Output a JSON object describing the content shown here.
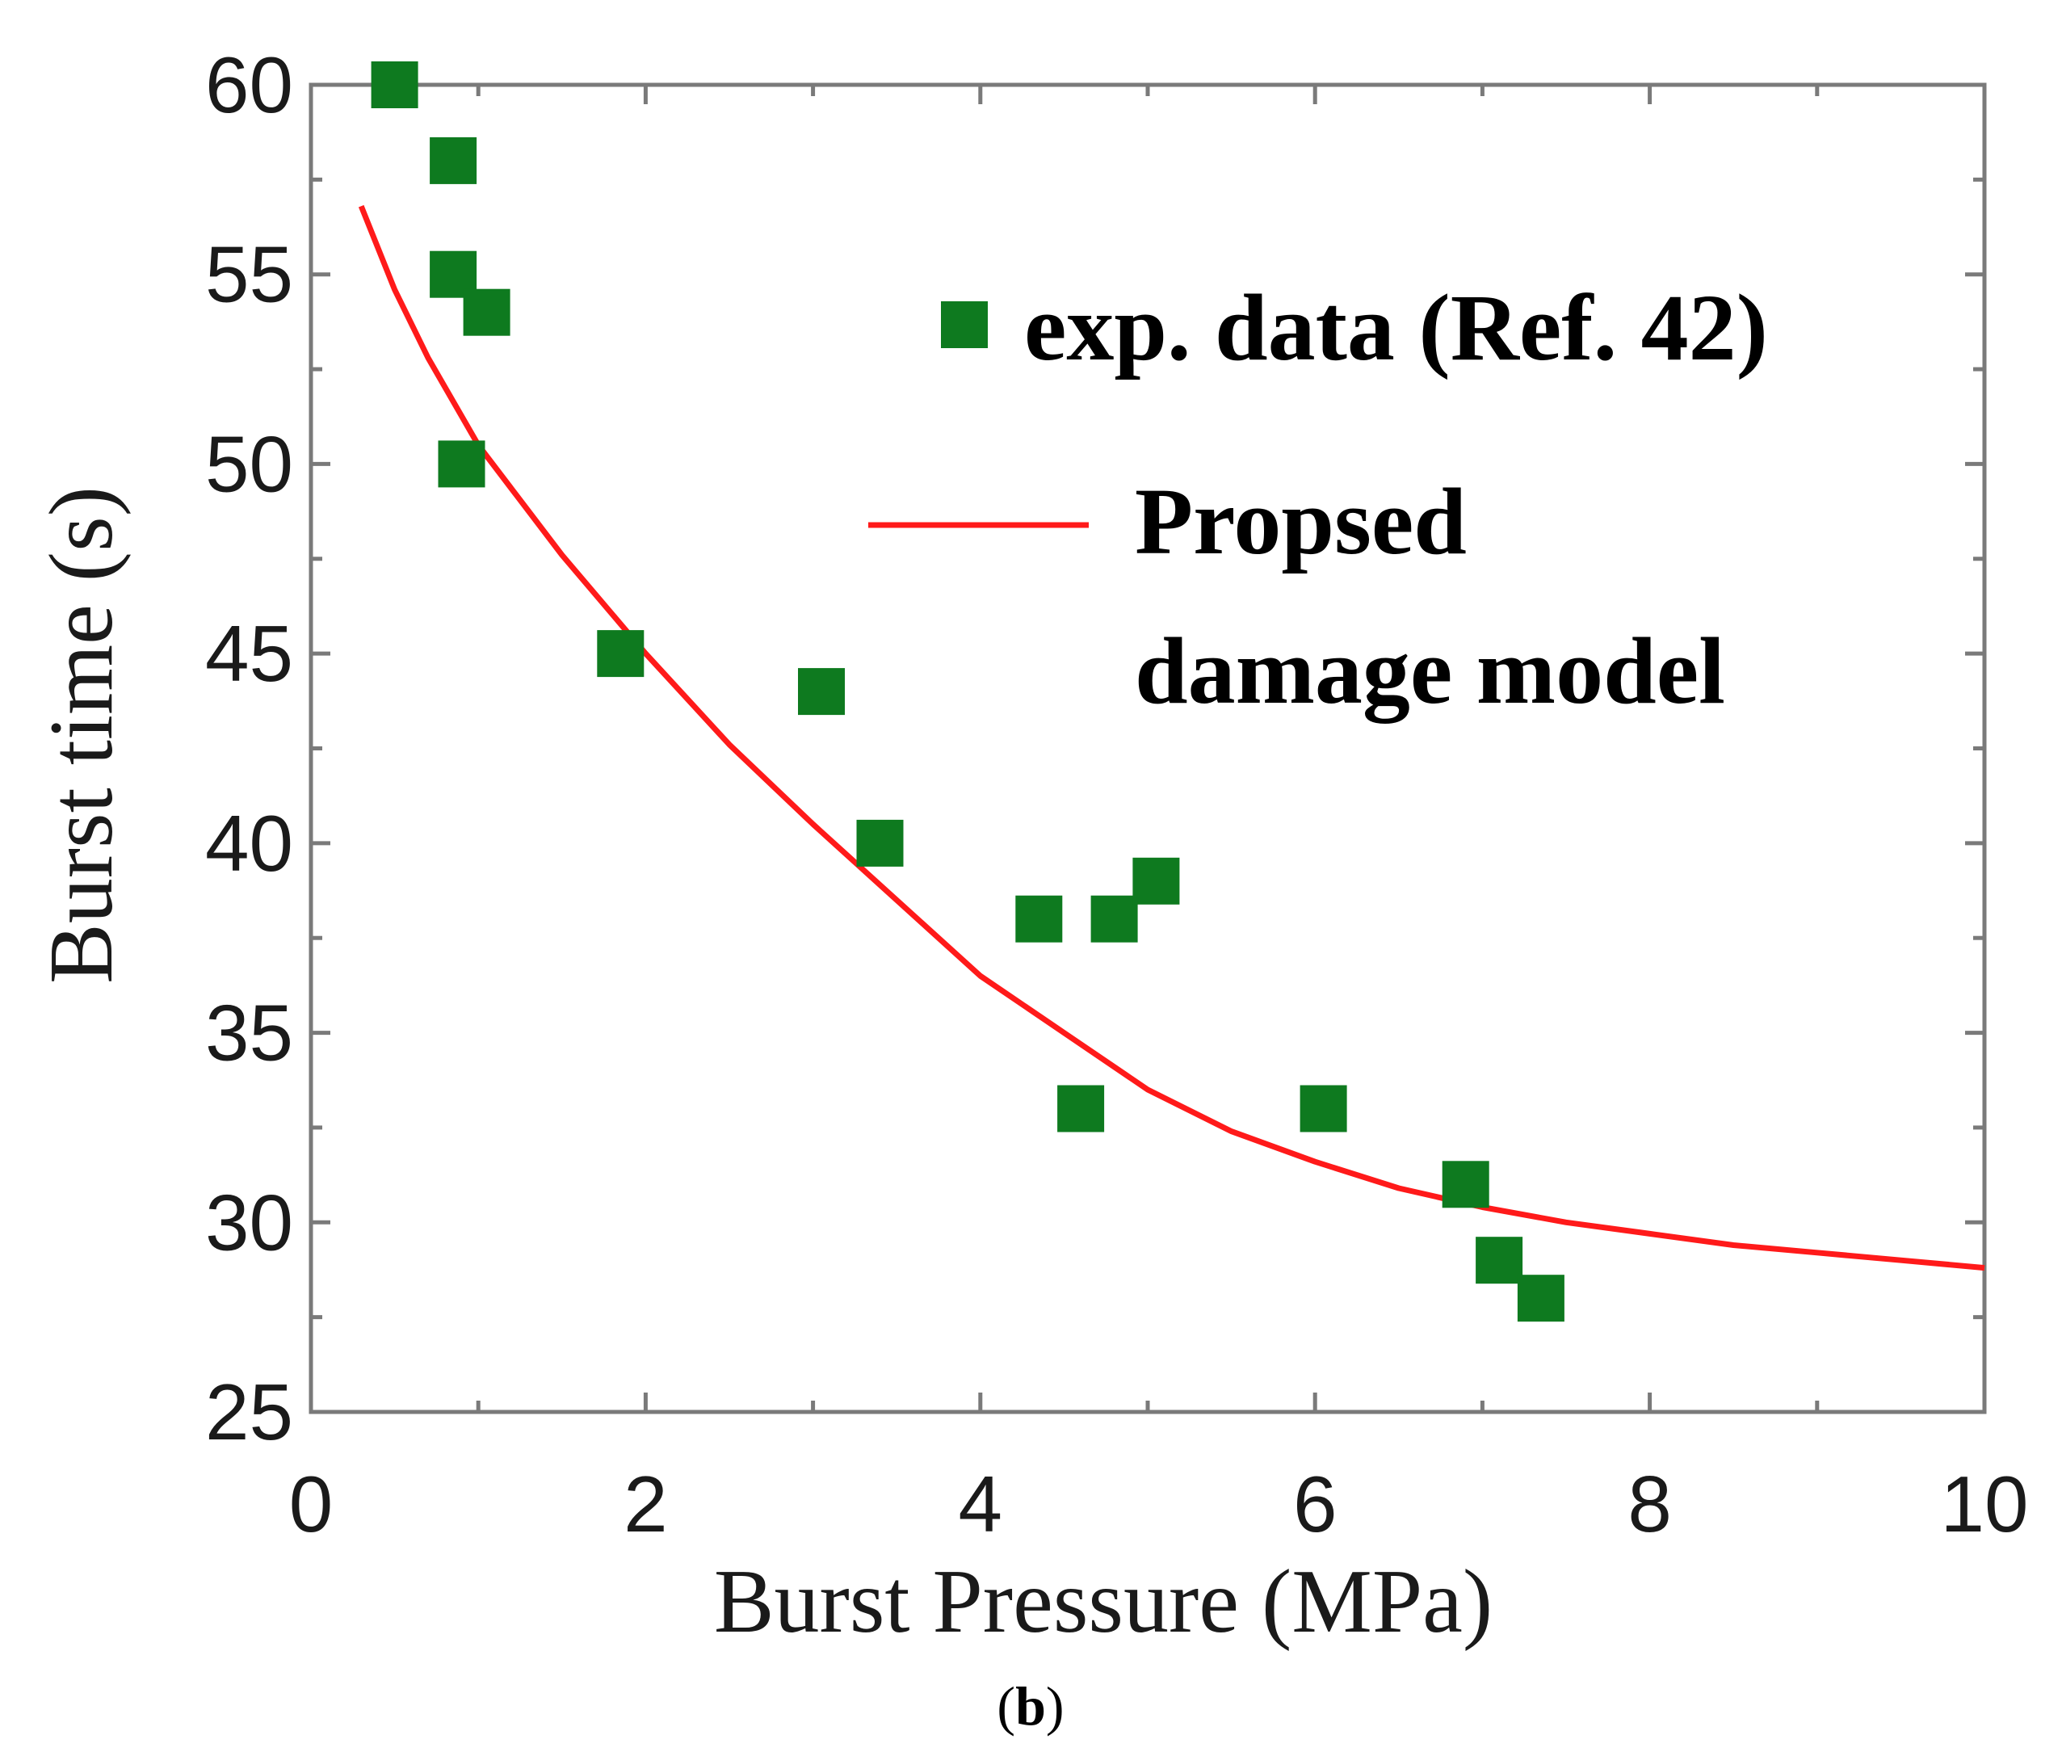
{
  "chart_data": {
    "type": "scatter",
    "title": "",
    "xlabel": "Burst Pressure (MPa)",
    "ylabel": "Burst time (s)",
    "xlim": [
      0,
      10
    ],
    "ylim": [
      25,
      60
    ],
    "xticks": [
      0,
      2,
      4,
      6,
      8,
      10
    ],
    "yticks": [
      25,
      30,
      35,
      40,
      45,
      50,
      55,
      60
    ],
    "x_tick_labels": [
      "0",
      "2",
      "4",
      "6",
      "8",
      "10"
    ],
    "y_tick_labels": [
      "25",
      "30",
      "35",
      "40",
      "45",
      "50",
      "55",
      "60"
    ],
    "grid": false,
    "legend_position": "top-right",
    "series": [
      {
        "name": "exp. data (Ref. 42)",
        "kind": "scatter",
        "marker": "square",
        "color": "#0e7a1f",
        "points": [
          {
            "x": 0.5,
            "y": 60
          },
          {
            "x": 0.85,
            "y": 58
          },
          {
            "x": 0.85,
            "y": 55
          },
          {
            "x": 1.05,
            "y": 54
          },
          {
            "x": 0.9,
            "y": 50
          },
          {
            "x": 1.85,
            "y": 45
          },
          {
            "x": 3.05,
            "y": 44
          },
          {
            "x": 3.4,
            "y": 40
          },
          {
            "x": 4.35,
            "y": 38
          },
          {
            "x": 4.8,
            "y": 38
          },
          {
            "x": 5.05,
            "y": 39
          },
          {
            "x": 4.6,
            "y": 33
          },
          {
            "x": 6.05,
            "y": 33
          },
          {
            "x": 6.9,
            "y": 31
          },
          {
            "x": 7.1,
            "y": 29
          },
          {
            "x": 7.35,
            "y": 28
          }
        ]
      },
      {
        "name_lines": [
          "Propsed",
          "damage model"
        ],
        "kind": "line",
        "color": "#ff1a1a",
        "points": [
          {
            "x": 0.3,
            "y": 56.8
          },
          {
            "x": 0.5,
            "y": 54.6
          },
          {
            "x": 0.7,
            "y": 52.8
          },
          {
            "x": 1.0,
            "y": 50.5
          },
          {
            "x": 1.5,
            "y": 47.6
          },
          {
            "x": 2.0,
            "y": 45.0
          },
          {
            "x": 2.5,
            "y": 42.6
          },
          {
            "x": 3.0,
            "y": 40.5
          },
          {
            "x": 3.5,
            "y": 38.5
          },
          {
            "x": 4.0,
            "y": 36.5
          },
          {
            "x": 4.5,
            "y": 35.0
          },
          {
            "x": 5.0,
            "y": 33.5
          },
          {
            "x": 5.5,
            "y": 32.4
          },
          {
            "x": 6.0,
            "y": 31.6
          },
          {
            "x": 6.5,
            "y": 30.9
          },
          {
            "x": 7.0,
            "y": 30.4
          },
          {
            "x": 7.5,
            "y": 30.0
          },
          {
            "x": 8.0,
            "y": 29.7
          },
          {
            "x": 8.5,
            "y": 29.4
          },
          {
            "x": 9.0,
            "y": 29.2
          },
          {
            "x": 9.5,
            "y": 29.0
          },
          {
            "x": 10.0,
            "y": 28.8
          }
        ]
      }
    ]
  },
  "caption": {
    "open": "(",
    "letter": "b",
    "close": ")"
  }
}
